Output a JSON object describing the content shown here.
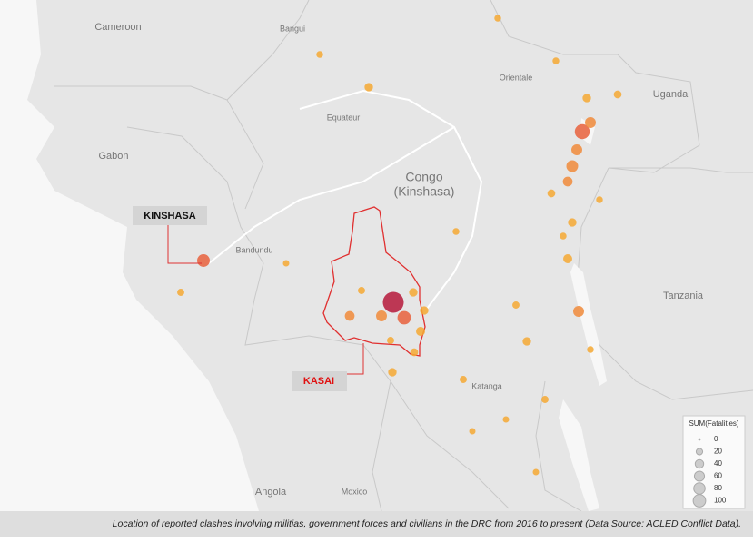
{
  "map_labels": [
    "Cameroon",
    "Bangui",
    "Orientale",
    "Uganda",
    "Equateur",
    "Gabon",
    "Congo",
    "(Kinshasa)",
    "Bandundu",
    "Tanzania",
    "Katanga",
    "Angola",
    "Moxico"
  ],
  "callouts": {
    "kinshasa": "KINSHASA",
    "kasai": "KASAI"
  },
  "legend": {
    "title": "SUM(Fatalities)",
    "sizes": [
      0,
      20,
      40,
      60,
      80,
      100
    ]
  },
  "events": [
    100,
    35,
    20,
    15,
    10,
    12,
    10,
    10,
    8,
    6,
    6,
    30,
    10,
    6,
    20,
    12,
    45,
    25,
    20,
    15,
    8,
    10,
    10,
    20,
    8,
    10,
    6,
    6,
    6,
    5,
    5,
    4,
    4,
    4,
    5,
    5,
    5,
    5,
    4,
    5
  ],
  "caption": "Location of reported clashes involving militias, government forces and civilians in the DRC from 2016 to present (Data Source: ACLED Conflict Data)."
}
